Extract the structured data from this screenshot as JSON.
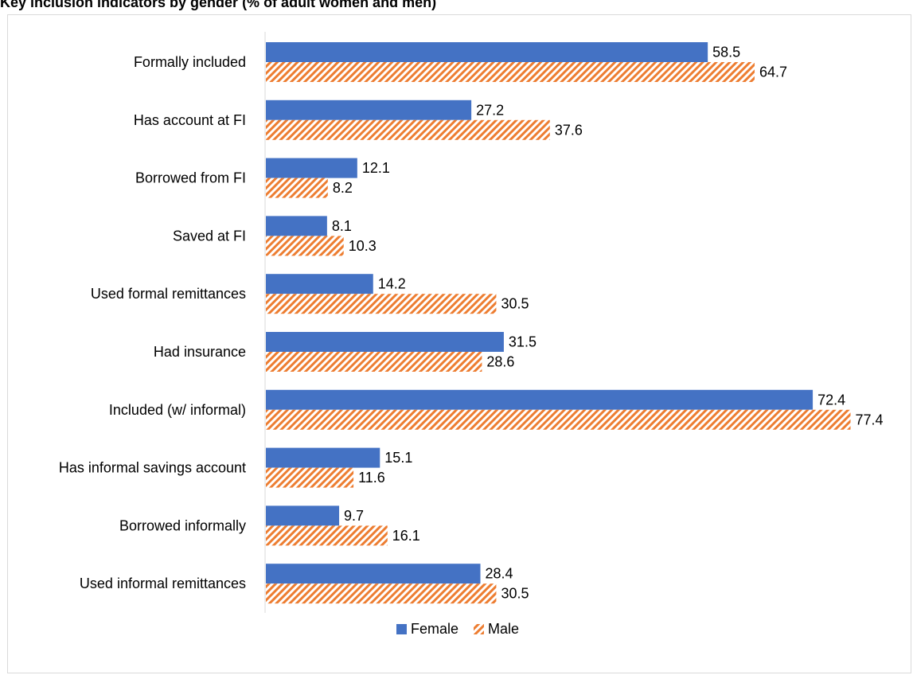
{
  "chart_data": {
    "type": "bar",
    "orientation": "horizontal",
    "title": "Key inclusion indicators by gender (% of adult women and men)",
    "categories": [
      "Formally included",
      "Has account at FI",
      "Borrowed from FI",
      "Saved at FI",
      "Used formal remittances",
      "Had insurance",
      "Included (w/ informal)",
      "Has informal savings account",
      "Borrowed informally",
      "Used informal remittances"
    ],
    "series": [
      {
        "name": "Female",
        "values": [
          58.5,
          27.2,
          12.1,
          8.1,
          14.2,
          31.5,
          72.4,
          15.1,
          9.7,
          28.4
        ]
      },
      {
        "name": "Male",
        "values": [
          64.7,
          37.6,
          8.2,
          10.3,
          30.5,
          28.6,
          77.4,
          11.6,
          16.1,
          30.5
        ]
      }
    ],
    "xlim": [
      0,
      90
    ],
    "data_labels": true,
    "grid": false,
    "legend_position": "bottom",
    "colors": {
      "Female": "#4472c4",
      "Male": "#ed7d31"
    },
    "pattern": {
      "Female": "solid",
      "Male": "diagonal-hatch"
    }
  }
}
